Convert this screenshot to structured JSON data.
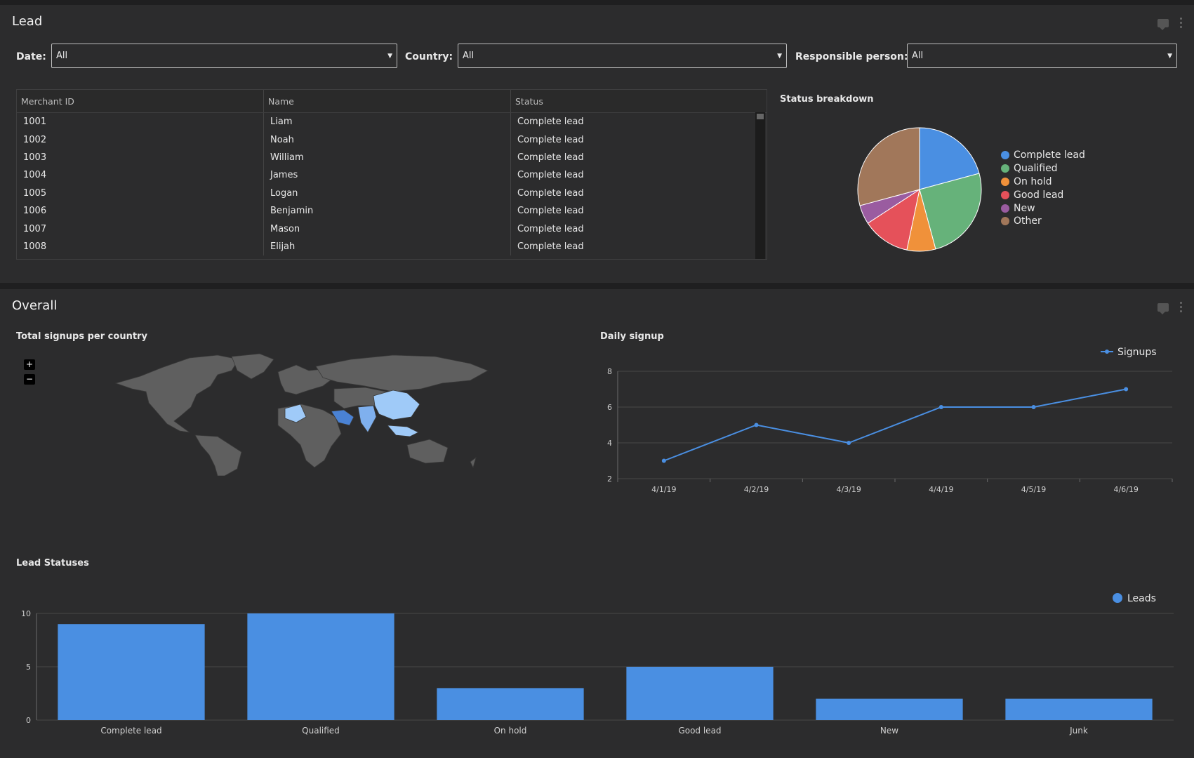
{
  "lead": {
    "title": "Lead",
    "filters": {
      "date": {
        "label": "Date:",
        "value": "All"
      },
      "country": {
        "label": "Country:",
        "value": "All"
      },
      "responsible": {
        "label": "Responsible person:",
        "value": "All"
      }
    },
    "table": {
      "columns": [
        "Merchant ID",
        "Name",
        "Status"
      ],
      "rows": [
        [
          "1001",
          "Liam",
          "Complete lead"
        ],
        [
          "1002",
          "Noah",
          "Complete lead"
        ],
        [
          "1003",
          "William",
          "Complete lead"
        ],
        [
          "1004",
          "James",
          "Complete lead"
        ],
        [
          "1005",
          "Logan",
          "Complete lead"
        ],
        [
          "1006",
          "Benjamin",
          "Complete lead"
        ],
        [
          "1007",
          "Mason",
          "Complete lead"
        ],
        [
          "1008",
          "Elijah",
          "Complete lead"
        ]
      ]
    },
    "status_breakdown": {
      "title": "Status breakdown"
    }
  },
  "overall": {
    "title": "Overall",
    "map": {
      "title": "Total signups per country",
      "zoom_in": "+",
      "zoom_out": "−"
    },
    "daily_signup": {
      "title": "Daily signup"
    },
    "lead_statuses": {
      "title": "Lead Statuses"
    }
  },
  "colors": {
    "blue": "#4a8fe2",
    "green": "#66b27a",
    "orange": "#f0913a",
    "red": "#e5515a",
    "purple": "#9a5ca0",
    "brown": "#a1775a",
    "map_land": "#5f5f5f",
    "map_highlight": "#9fcaf8",
    "map_highlight_dark": "#4a82d4"
  },
  "chart_data": [
    {
      "type": "pie",
      "title": "Status breakdown",
      "categories": [
        "Complete lead",
        "Qualified",
        "On hold",
        "Good lead",
        "New",
        "Other"
      ],
      "values": [
        20.8,
        25.0,
        7.5,
        12.5,
        5.0,
        29.2
      ],
      "colors": [
        "#4a8fe2",
        "#66b27a",
        "#f0913a",
        "#e5515a",
        "#9a5ca0",
        "#a1775a"
      ],
      "legend": "right"
    },
    {
      "type": "line",
      "title": "Daily signup",
      "x": [
        "4/1/19",
        "4/2/19",
        "4/3/19",
        "4/4/19",
        "4/5/19",
        "4/6/19"
      ],
      "series": [
        {
          "name": "Signups",
          "values": [
            3,
            5,
            4,
            6,
            6,
            7
          ]
        }
      ],
      "ylim": [
        2,
        8
      ],
      "yticks": [
        2,
        4,
        6,
        8
      ],
      "grid": true,
      "legend": "top-right"
    },
    {
      "type": "bar",
      "title": "Lead Statuses",
      "categories": [
        "Complete lead",
        "Qualified",
        "On hold",
        "Good lead",
        "New",
        "Junk"
      ],
      "series": [
        {
          "name": "Leads",
          "values": [
            9,
            10,
            3,
            5,
            2,
            2
          ]
        }
      ],
      "ylim": [
        0,
        10
      ],
      "yticks": [
        0,
        5,
        10
      ],
      "grid": true,
      "legend": "top-right"
    }
  ]
}
